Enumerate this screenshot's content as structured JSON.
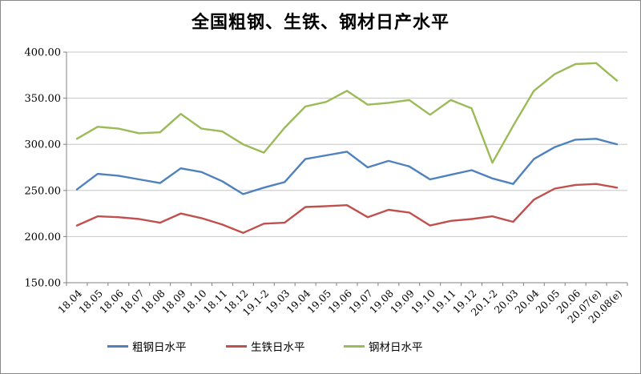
{
  "chart": {
    "title": "全国粗钢、生铁、钢材日产水平"
  },
  "chart_data": {
    "type": "line",
    "title": "全国粗钢、生铁、钢材日产水平",
    "xlabel": "",
    "ylabel": "",
    "ylim": [
      150,
      400
    ],
    "ytick_step": 50,
    "ytick_labels": [
      "400.00",
      "350.00",
      "300.00",
      "250.00",
      "200.00",
      "150.00"
    ],
    "grid": true,
    "legend_position": "bottom",
    "categories": [
      "18.04",
      "18.05",
      "18.06",
      "18.07",
      "18.08",
      "18.09",
      "18.10",
      "18.11",
      "18.12",
      "19.1-2",
      "19.03",
      "19.04",
      "19.05",
      "19.06",
      "19.07",
      "19.08",
      "19.09",
      "19.10",
      "19.11",
      "19.12",
      "20.1-2",
      "20.03",
      "20.04",
      "20.05",
      "20.06",
      "20.07(e)",
      "20.08(e)"
    ],
    "series": [
      {
        "name": "粗钢日水平",
        "color": "#4F81BD",
        "values": [
          251,
          268,
          266,
          262,
          258,
          274,
          270,
          260,
          246,
          253,
          259,
          284,
          288,
          292,
          275,
          282,
          276,
          262,
          267,
          272,
          263,
          257,
          284,
          297,
          305,
          306,
          300
        ]
      },
      {
        "name": "生铁日水平",
        "color": "#C0504D",
        "values": [
          212,
          222,
          221,
          219,
          215,
          225,
          220,
          213,
          204,
          214,
          215,
          232,
          233,
          234,
          221,
          229,
          226,
          212,
          217,
          219,
          222,
          216,
          240,
          252,
          256,
          257,
          253
        ]
      },
      {
        "name": "钢材日水平",
        "color": "#9BBB59",
        "values": [
          306,
          319,
          317,
          312,
          313,
          333,
          317,
          314,
          300,
          291,
          318,
          341,
          346,
          358,
          343,
          345,
          348,
          332,
          348,
          339,
          280,
          320,
          358,
          376,
          387,
          388,
          369
        ]
      }
    ]
  },
  "style": {
    "background": "#FFFFFF",
    "axis_color": "#808080",
    "grid_color": "#C6C6C6",
    "text_color": "#000000"
  }
}
